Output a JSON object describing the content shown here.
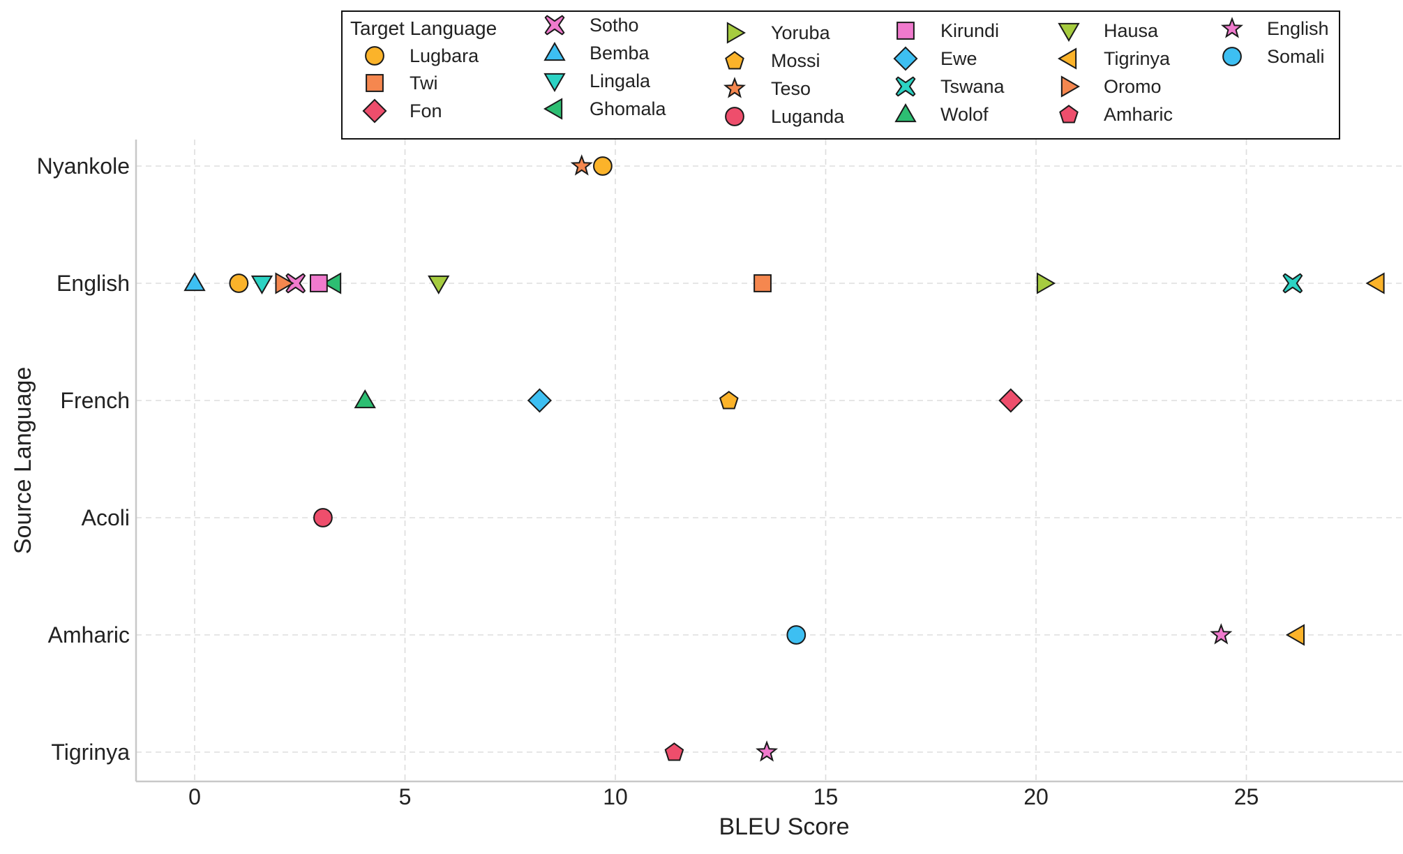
{
  "chart_data": {
    "type": "scatter",
    "title": "",
    "xlabel": "BLEU Score",
    "ylabel": "Source Language",
    "xlim": [
      -1.4,
      28.7
    ],
    "x_ticks": [
      0,
      5,
      10,
      15,
      20,
      25
    ],
    "grid": true,
    "legend_title": "Target Language",
    "legend_placement": "top-center",
    "categories": [
      "Nyankole",
      "English",
      "French",
      "Acoli",
      "Amharic",
      "Tigrinya"
    ],
    "series": [
      {
        "name": "Lugbara",
        "marker": "circle",
        "color": "#FBB32A",
        "points": [
          {
            "source": "Nyankole",
            "x": 9.7
          },
          {
            "source": "English",
            "x": 1.05
          }
        ]
      },
      {
        "name": "Twi",
        "marker": "square",
        "color": "#F5874F",
        "points": [
          {
            "source": "English",
            "x": 13.5
          }
        ]
      },
      {
        "name": "Fon",
        "marker": "diamond",
        "color": "#EE4E6C",
        "points": [
          {
            "source": "French",
            "x": 19.4
          }
        ]
      },
      {
        "name": "Sotho",
        "marker": "x",
        "color": "#F07ACD",
        "points": [
          {
            "source": "English",
            "x": 2.4
          }
        ]
      },
      {
        "name": "Bemba",
        "marker": "triangle-up",
        "color": "#3DBFF2",
        "points": [
          {
            "source": "English",
            "x": 0.0
          }
        ]
      },
      {
        "name": "Lingala",
        "marker": "triangle-down",
        "color": "#2CD3C4",
        "points": [
          {
            "source": "English",
            "x": 1.6
          }
        ]
      },
      {
        "name": "Ghomala",
        "marker": "triangle-left",
        "color": "#2DBE72",
        "points": [
          {
            "source": "English",
            "x": 3.3
          }
        ]
      },
      {
        "name": "Yoruba",
        "marker": "triangle-right",
        "color": "#A6CC3F",
        "points": [
          {
            "source": "English",
            "x": 20.2
          }
        ]
      },
      {
        "name": "Mossi",
        "marker": "pentagon",
        "color": "#FBB32A",
        "points": [
          {
            "source": "French",
            "x": 12.7
          }
        ]
      },
      {
        "name": "Teso",
        "marker": "star",
        "color": "#F5874F",
        "points": [
          {
            "source": "Nyankole",
            "x": 9.2
          }
        ]
      },
      {
        "name": "Luganda",
        "marker": "circle",
        "color": "#EE4E6C",
        "points": [
          {
            "source": "Acoli",
            "x": 3.05
          }
        ]
      },
      {
        "name": "Kirundi",
        "marker": "square",
        "color": "#F07ACD",
        "points": [
          {
            "source": "English",
            "x": 2.95
          }
        ]
      },
      {
        "name": "Ewe",
        "marker": "diamond",
        "color": "#3DBFF2",
        "points": [
          {
            "source": "French",
            "x": 8.2
          }
        ]
      },
      {
        "name": "Tswana",
        "marker": "x",
        "color": "#2CD3C4",
        "points": [
          {
            "source": "English",
            "x": 26.1
          }
        ]
      },
      {
        "name": "Wolof",
        "marker": "triangle-up",
        "color": "#2DBE72",
        "points": [
          {
            "source": "French",
            "x": 4.05
          }
        ]
      },
      {
        "name": "Hausa",
        "marker": "triangle-down",
        "color": "#A6CC3F",
        "points": [
          {
            "source": "English",
            "x": 5.8
          }
        ]
      },
      {
        "name": "Tigrinya",
        "marker": "triangle-left",
        "color": "#FBB32A",
        "points": [
          {
            "source": "English",
            "x": 28.1
          },
          {
            "source": "Amharic",
            "x": 26.2
          }
        ]
      },
      {
        "name": "Oromo",
        "marker": "triangle-right",
        "color": "#F5874F",
        "points": [
          {
            "source": "English",
            "x": 2.1
          }
        ]
      },
      {
        "name": "Amharic",
        "marker": "pentagon",
        "color": "#EE4E6C",
        "points": [
          {
            "source": "Tigrinya",
            "x": 11.4
          }
        ]
      },
      {
        "name": "English",
        "marker": "star",
        "color": "#F07ACD",
        "points": [
          {
            "source": "Amharic",
            "x": 24.4
          },
          {
            "source": "Tigrinya",
            "x": 13.6
          }
        ]
      },
      {
        "name": "Somali",
        "marker": "circle",
        "color": "#3DBFF2",
        "points": [
          {
            "source": "Amharic",
            "x": 14.3
          }
        ]
      }
    ]
  }
}
